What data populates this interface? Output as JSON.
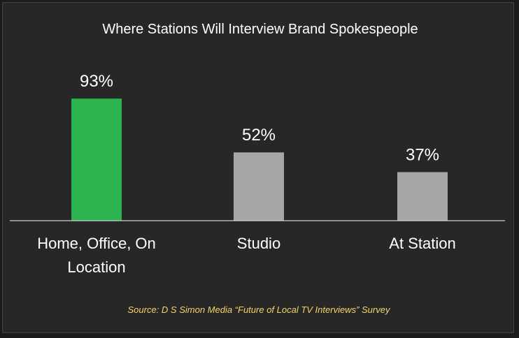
{
  "chart_data": {
    "type": "bar",
    "title": "Where Stations Will Interview Brand Spokespeople",
    "categories": [
      "Home, Office, On Location",
      "Studio",
      "At Station"
    ],
    "category_lines": [
      [
        "Home, Office, On",
        "Location"
      ],
      [
        "Studio"
      ],
      [
        "At Station"
      ]
    ],
    "values": [
      93,
      52,
      37
    ],
    "value_labels": [
      "93%",
      "52%",
      "37%"
    ],
    "ylim": [
      0,
      100
    ],
    "grid": false,
    "legend": "none",
    "source": "Source: D S Simon Media “Future of Local TV Interviews” Survey"
  },
  "colors": {
    "background": "#272727",
    "bars": [
      "#2bb34e",
      "#a7a7a7",
      "#a7a7a7"
    ],
    "axis": "#d0d0d0",
    "text": "#ffffff",
    "source": "#f5d56a"
  }
}
